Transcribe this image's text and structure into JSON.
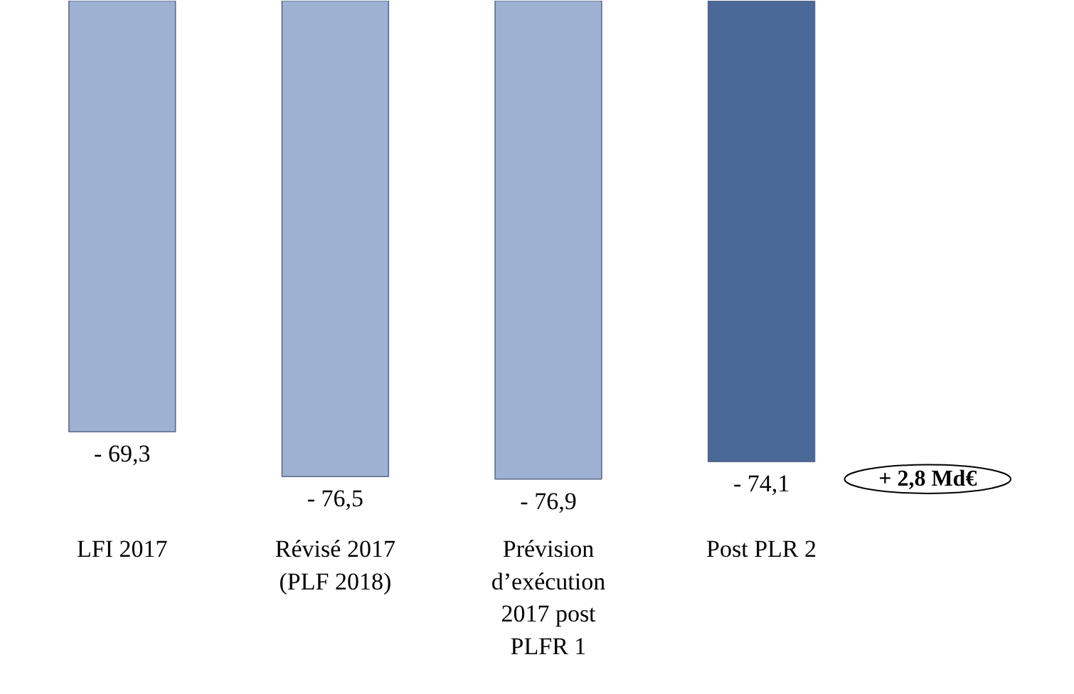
{
  "chart_data": {
    "type": "bar",
    "categories": [
      "LFI 2017",
      "Révisé 2017\n(PLF 2018)",
      "Prévision\nd’exécution\n2017 post\nPLFR 1",
      "Post PLR 2"
    ],
    "values": [
      -69.3,
      -76.5,
      -76.9,
      -74.1
    ],
    "colors": [
      "#9fb1d3",
      "#9fb1d3",
      "#9fb1d3",
      "#4a6898"
    ],
    "value_labels": [
      "- 69,3",
      "- 76,5",
      "- 76,9",
      "- 74,1"
    ],
    "tick_labels": "x",
    "grid": false,
    "annotations": [
      "+ 2,8 Md€"
    ]
  }
}
